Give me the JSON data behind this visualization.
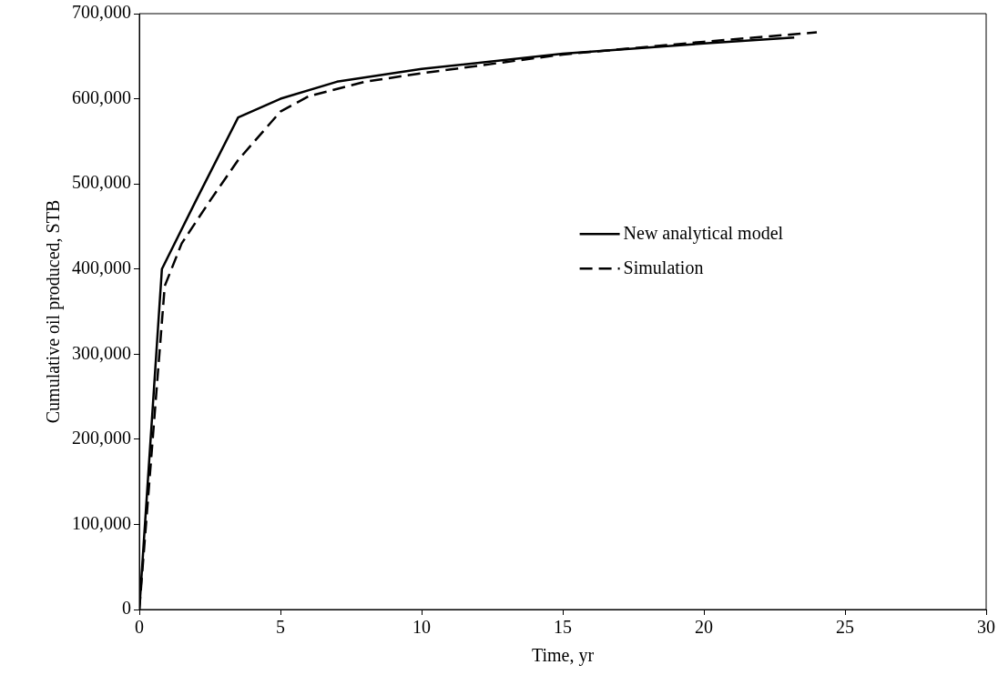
{
  "chart_data": {
    "type": "line",
    "xlabel": "Time, yr",
    "ylabel": "Cumulative oil produced, STB",
    "xlim": [
      0,
      30
    ],
    "xticks": [
      0,
      5,
      10,
      15,
      20,
      25,
      30
    ],
    "ylim": [
      0,
      700000
    ],
    "yticks": [
      0,
      {
        "value": 100000,
        "label": "100,000"
      },
      {
        "value": 200000,
        "label": "200,000"
      },
      {
        "value": 300000,
        "label": "300,000"
      },
      {
        "value": 400000,
        "label": "400,000"
      },
      {
        "value": 500000,
        "label": "500,000"
      },
      {
        "value": 600000,
        "label": "600,000"
      },
      {
        "value": 700000,
        "label": "700,000"
      }
    ],
    "grid": false,
    "legend": "right",
    "marker": "none",
    "series": [
      {
        "name": "New analytical model",
        "color": "#000000",
        "line_style": "solid",
        "x": [
          0,
          0.8,
          2,
          3.5,
          5,
          7,
          10,
          15,
          20,
          23.2
        ],
        "values": [
          0,
          400000,
          480000,
          578000,
          600000,
          620000,
          635000,
          653000,
          665000,
          672000
        ]
      },
      {
        "name": "Simulation",
        "color": "#000000",
        "line_style": "dashed",
        "x": [
          0,
          0.9,
          1.5,
          2.5,
          3.5,
          5,
          6,
          8,
          10,
          15,
          20,
          24
        ],
        "values": [
          0,
          380000,
          430000,
          480000,
          528000,
          585000,
          603000,
          620000,
          630000,
          652000,
          667000,
          678000
        ]
      }
    ]
  }
}
